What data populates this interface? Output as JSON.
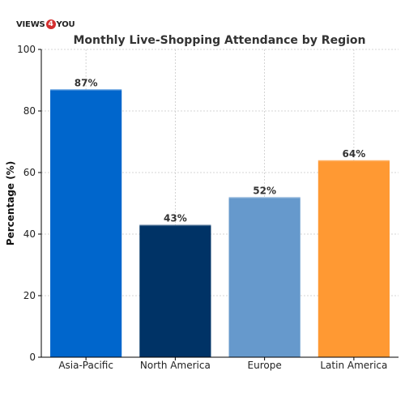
{
  "logo": {
    "part_a": "VIEWS",
    "part_num": "4",
    "part_b": "YOU"
  },
  "chart_data": {
    "type": "bar",
    "title": "Monthly Live-Shopping Attendance by Region",
    "xlabel": "",
    "ylabel": "Percentage (%)",
    "categories": [
      "Asia-Pacific",
      "North America",
      "Europe",
      "Latin America"
    ],
    "values": [
      87,
      43,
      52,
      64
    ],
    "data_labels": [
      "87%",
      "43%",
      "52%",
      "64%"
    ],
    "colors": [
      "#0066cc",
      "#003366",
      "#6699cc",
      "#ff9933"
    ],
    "ylim": [
      0,
      100
    ],
    "yticks": [
      0,
      20,
      40,
      60,
      80,
      100
    ],
    "grid": true,
    "legend": "none"
  }
}
